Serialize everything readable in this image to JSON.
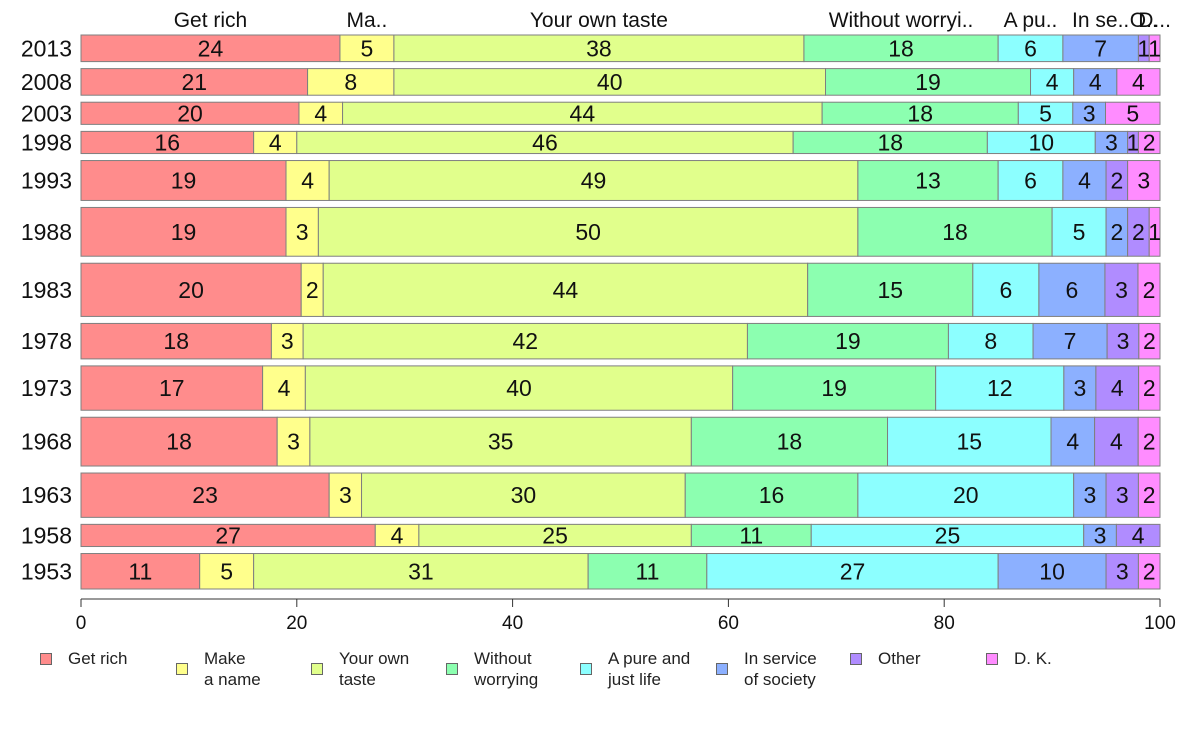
{
  "chart_data": {
    "type": "bar",
    "orientation": "horizontal",
    "stacked": true,
    "categories": [
      "2013",
      "2008",
      "2003",
      "1998",
      "1993",
      "1988",
      "1983",
      "1978",
      "1973",
      "1968",
      "1963",
      "1958",
      "1953"
    ],
    "column_headers": [
      "Get rich",
      "Ma..",
      "Your own taste",
      "Without worryi..",
      "A pu..",
      "In se..",
      "O..",
      "D..."
    ],
    "series": [
      {
        "name": "Get rich",
        "color": "#ff8c8c",
        "values": [
          24,
          21,
          20,
          16,
          19,
          19,
          20,
          18,
          17,
          18,
          23,
          27,
          11
        ]
      },
      {
        "name": "Make a name",
        "color": "#ffff8c",
        "values": [
          5,
          8,
          4,
          4,
          4,
          3,
          2,
          3,
          4,
          3,
          3,
          4,
          5
        ]
      },
      {
        "name": "Your own taste",
        "color": "#e1ff8c",
        "values": [
          38,
          40,
          44,
          46,
          49,
          50,
          44,
          42,
          40,
          35,
          30,
          25,
          31
        ]
      },
      {
        "name": "Without worrying",
        "color": "#8cffb0",
        "values": [
          18,
          19,
          18,
          18,
          13,
          18,
          15,
          19,
          19,
          18,
          16,
          11,
          11
        ]
      },
      {
        "name": "A pure and just life",
        "color": "#8cffff",
        "values": [
          6,
          4,
          5,
          10,
          6,
          5,
          6,
          8,
          12,
          15,
          20,
          25,
          27
        ]
      },
      {
        "name": "In service of society",
        "color": "#8cb0ff",
        "values": [
          7,
          4,
          3,
          3,
          4,
          2,
          6,
          7,
          3,
          4,
          3,
          3,
          10
        ]
      },
      {
        "name": "Other",
        "color": "#b08cff",
        "values": [
          1,
          0,
          0,
          1,
          2,
          2,
          3,
          3,
          4,
          4,
          3,
          4,
          3
        ]
      },
      {
        "name": "D. K.",
        "color": "#ff8cff",
        "values": [
          1,
          4,
          5,
          2,
          3,
          1,
          2,
          2,
          2,
          2,
          2,
          0,
          2
        ]
      }
    ],
    "segment_labels": [
      [
        "24",
        "5",
        "38",
        "18",
        "6",
        "7",
        "1",
        "1"
      ],
      [
        "21",
        "8",
        "40",
        "19",
        "4",
        "4",
        "",
        "4"
      ],
      [
        "20",
        "4",
        "44",
        "18",
        "5",
        "3",
        "",
        "5"
      ],
      [
        "16",
        "4",
        "46",
        "18",
        "10",
        "3",
        "1",
        "2"
      ],
      [
        "19",
        "4",
        "49",
        "13",
        "6",
        "4",
        "2",
        "3"
      ],
      [
        "19",
        "3",
        "50",
        "18",
        "5",
        "2",
        "2",
        "1"
      ],
      [
        "20",
        "2",
        "44",
        "15",
        "6",
        "6",
        "3",
        "2"
      ],
      [
        "18",
        "3",
        "42",
        "19",
        "8",
        "7",
        "3",
        "2"
      ],
      [
        "17",
        "4",
        "40",
        "19",
        "12",
        "3",
        "4",
        "2"
      ],
      [
        "18",
        "3",
        "35",
        "18",
        "15",
        "4",
        "4",
        "2"
      ],
      [
        "23",
        "3",
        "30",
        "16",
        "20",
        "3",
        "3",
        "2"
      ],
      [
        "27",
        "4",
        "25",
        "11",
        "25",
        "3",
        "4",
        ""
      ],
      [
        "11",
        "5",
        "31",
        "11",
        "27",
        "10",
        "3",
        "2"
      ]
    ],
    "row_weights": [
      6,
      6,
      5,
      5,
      9,
      11,
      12,
      8,
      10,
      11,
      10,
      5,
      8
    ],
    "xlim": [
      0,
      100
    ],
    "xticks": [
      "0",
      "20",
      "40",
      "60",
      "80",
      "100"
    ],
    "grid": false,
    "legend_position": "bottom",
    "legend_labels": [
      "Get rich",
      "Make\na name",
      "Your own\ntaste",
      "Without\nworrying",
      "A pure and\njust life",
      "In service\nof society",
      "Other",
      "D. K."
    ]
  }
}
